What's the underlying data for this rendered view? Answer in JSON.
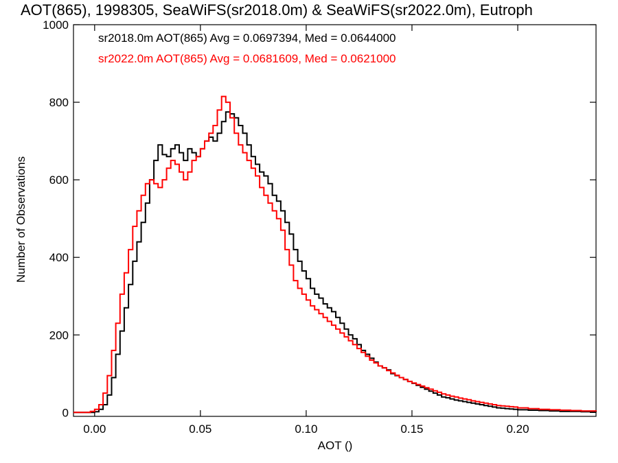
{
  "chart_data": {
    "type": "line",
    "title": "AOT(865), 1998305, SeaWiFS(sr2018.0m) & SeaWiFS(sr2022.0m), Eutroph",
    "xlabel": "AOT ()",
    "ylabel": "Number of Observations",
    "xlim": [
      -0.01,
      0.237
    ],
    "ylim": [
      -10,
      1000
    ],
    "x_ticks": [
      0.0,
      0.05,
      0.1,
      0.15,
      0.2
    ],
    "x_tick_labels": [
      "0.00",
      "0.05",
      "0.10",
      "0.15",
      "0.20"
    ],
    "y_ticks": [
      0,
      200,
      400,
      600,
      800,
      1000
    ],
    "y_tick_labels": [
      "0",
      "200",
      "400",
      "600",
      "800",
      "1000"
    ],
    "grid": false,
    "series": [
      {
        "name": "sr2018.0m",
        "color": "#000000",
        "annotation": "sr2018.0m AOT(865) Avg = 0.0697394, Med = 0.0644000",
        "points": [
          [
            -0.01,
            0
          ],
          [
            -0.002,
            0
          ],
          [
            0.0,
            2
          ],
          [
            0.002,
            8
          ],
          [
            0.004,
            20
          ],
          [
            0.006,
            45
          ],
          [
            0.008,
            90
          ],
          [
            0.01,
            150
          ],
          [
            0.012,
            210
          ],
          [
            0.014,
            270
          ],
          [
            0.016,
            330
          ],
          [
            0.018,
            390
          ],
          [
            0.02,
            440
          ],
          [
            0.022,
            490
          ],
          [
            0.024,
            540
          ],
          [
            0.026,
            600
          ],
          [
            0.028,
            650
          ],
          [
            0.03,
            690
          ],
          [
            0.032,
            665
          ],
          [
            0.034,
            660
          ],
          [
            0.036,
            680
          ],
          [
            0.038,
            690
          ],
          [
            0.04,
            670
          ],
          [
            0.042,
            650
          ],
          [
            0.044,
            680
          ],
          [
            0.046,
            670
          ],
          [
            0.048,
            660
          ],
          [
            0.05,
            680
          ],
          [
            0.052,
            700
          ],
          [
            0.054,
            710
          ],
          [
            0.056,
            700
          ],
          [
            0.058,
            720
          ],
          [
            0.06,
            750
          ],
          [
            0.062,
            775
          ],
          [
            0.064,
            770
          ],
          [
            0.066,
            760
          ],
          [
            0.068,
            740
          ],
          [
            0.07,
            720
          ],
          [
            0.072,
            690
          ],
          [
            0.074,
            660
          ],
          [
            0.076,
            640
          ],
          [
            0.078,
            620
          ],
          [
            0.08,
            610
          ],
          [
            0.082,
            590
          ],
          [
            0.084,
            560
          ],
          [
            0.086,
            545
          ],
          [
            0.088,
            520
          ],
          [
            0.09,
            490
          ],
          [
            0.092,
            460
          ],
          [
            0.094,
            420
          ],
          [
            0.096,
            390
          ],
          [
            0.098,
            365
          ],
          [
            0.1,
            345
          ],
          [
            0.102,
            320
          ],
          [
            0.104,
            305
          ],
          [
            0.106,
            295
          ],
          [
            0.108,
            280
          ],
          [
            0.11,
            270
          ],
          [
            0.112,
            260
          ],
          [
            0.114,
            245
          ],
          [
            0.116,
            230
          ],
          [
            0.118,
            215
          ],
          [
            0.12,
            200
          ],
          [
            0.122,
            190
          ],
          [
            0.124,
            175
          ],
          [
            0.126,
            160
          ],
          [
            0.128,
            150
          ],
          [
            0.13,
            140
          ],
          [
            0.132,
            130
          ],
          [
            0.134,
            120
          ],
          [
            0.136,
            115
          ],
          [
            0.138,
            110
          ],
          [
            0.14,
            100
          ],
          [
            0.142,
            95
          ],
          [
            0.144,
            90
          ],
          [
            0.146,
            85
          ],
          [
            0.148,
            80
          ],
          [
            0.15,
            75
          ],
          [
            0.152,
            70
          ],
          [
            0.154,
            65
          ],
          [
            0.156,
            60
          ],
          [
            0.158,
            55
          ],
          [
            0.16,
            50
          ],
          [
            0.162,
            45
          ],
          [
            0.164,
            40
          ],
          [
            0.166,
            38
          ],
          [
            0.168,
            35
          ],
          [
            0.17,
            32
          ],
          [
            0.172,
            30
          ],
          [
            0.174,
            28
          ],
          [
            0.176,
            26
          ],
          [
            0.178,
            24
          ],
          [
            0.18,
            22
          ],
          [
            0.182,
            20
          ],
          [
            0.184,
            18
          ],
          [
            0.186,
            16
          ],
          [
            0.188,
            14
          ],
          [
            0.19,
            12
          ],
          [
            0.192,
            11
          ],
          [
            0.194,
            10
          ],
          [
            0.196,
            9
          ],
          [
            0.198,
            8
          ],
          [
            0.2,
            7
          ],
          [
            0.205,
            6
          ],
          [
            0.21,
            5
          ],
          [
            0.215,
            4
          ],
          [
            0.22,
            3
          ],
          [
            0.225,
            3
          ],
          [
            0.23,
            2
          ],
          [
            0.237,
            1
          ]
        ]
      },
      {
        "name": "sr2022.0m",
        "color": "#ff0000",
        "annotation": "sr2022.0m AOT(865) Avg = 0.0681609, Med = 0.0621000",
        "points": [
          [
            -0.01,
            0
          ],
          [
            -0.004,
            0
          ],
          [
            -0.002,
            3
          ],
          [
            0.0,
            8
          ],
          [
            0.002,
            20
          ],
          [
            0.004,
            50
          ],
          [
            0.006,
            95
          ],
          [
            0.008,
            160
          ],
          [
            0.01,
            230
          ],
          [
            0.012,
            305
          ],
          [
            0.014,
            360
          ],
          [
            0.016,
            420
          ],
          [
            0.018,
            480
          ],
          [
            0.02,
            520
          ],
          [
            0.022,
            560
          ],
          [
            0.024,
            590
          ],
          [
            0.026,
            600
          ],
          [
            0.028,
            590
          ],
          [
            0.03,
            580
          ],
          [
            0.032,
            600
          ],
          [
            0.034,
            630
          ],
          [
            0.036,
            650
          ],
          [
            0.038,
            640
          ],
          [
            0.04,
            620
          ],
          [
            0.042,
            600
          ],
          [
            0.044,
            620
          ],
          [
            0.046,
            650
          ],
          [
            0.048,
            660
          ],
          [
            0.05,
            680
          ],
          [
            0.052,
            700
          ],
          [
            0.054,
            720
          ],
          [
            0.056,
            740
          ],
          [
            0.058,
            780
          ],
          [
            0.06,
            815
          ],
          [
            0.062,
            800
          ],
          [
            0.064,
            760
          ],
          [
            0.066,
            720
          ],
          [
            0.068,
            690
          ],
          [
            0.07,
            670
          ],
          [
            0.072,
            650
          ],
          [
            0.074,
            630
          ],
          [
            0.076,
            610
          ],
          [
            0.078,
            580
          ],
          [
            0.08,
            560
          ],
          [
            0.082,
            540
          ],
          [
            0.084,
            520
          ],
          [
            0.086,
            500
          ],
          [
            0.088,
            470
          ],
          [
            0.09,
            420
          ],
          [
            0.092,
            380
          ],
          [
            0.094,
            340
          ],
          [
            0.096,
            320
          ],
          [
            0.098,
            305
          ],
          [
            0.1,
            290
          ],
          [
            0.102,
            275
          ],
          [
            0.104,
            265
          ],
          [
            0.106,
            255
          ],
          [
            0.108,
            245
          ],
          [
            0.11,
            235
          ],
          [
            0.112,
            225
          ],
          [
            0.114,
            215
          ],
          [
            0.116,
            205
          ],
          [
            0.118,
            195
          ],
          [
            0.12,
            185
          ],
          [
            0.122,
            175
          ],
          [
            0.124,
            165
          ],
          [
            0.126,
            155
          ],
          [
            0.128,
            145
          ],
          [
            0.13,
            135
          ],
          [
            0.132,
            128
          ],
          [
            0.134,
            120
          ],
          [
            0.136,
            115
          ],
          [
            0.138,
            108
          ],
          [
            0.14,
            102
          ],
          [
            0.142,
            96
          ],
          [
            0.144,
            90
          ],
          [
            0.146,
            85
          ],
          [
            0.148,
            80
          ],
          [
            0.15,
            76
          ],
          [
            0.152,
            72
          ],
          [
            0.154,
            68
          ],
          [
            0.156,
            64
          ],
          [
            0.158,
            60
          ],
          [
            0.16,
            56
          ],
          [
            0.162,
            52
          ],
          [
            0.164,
            48
          ],
          [
            0.166,
            45
          ],
          [
            0.168,
            42
          ],
          [
            0.17,
            40
          ],
          [
            0.172,
            37
          ],
          [
            0.174,
            35
          ],
          [
            0.176,
            33
          ],
          [
            0.178,
            30
          ],
          [
            0.18,
            28
          ],
          [
            0.182,
            26
          ],
          [
            0.184,
            24
          ],
          [
            0.186,
            22
          ],
          [
            0.188,
            20
          ],
          [
            0.19,
            18
          ],
          [
            0.192,
            17
          ],
          [
            0.194,
            16
          ],
          [
            0.196,
            15
          ],
          [
            0.198,
            14
          ],
          [
            0.2,
            12
          ],
          [
            0.205,
            10
          ],
          [
            0.21,
            8
          ],
          [
            0.215,
            7
          ],
          [
            0.22,
            6
          ],
          [
            0.225,
            5
          ],
          [
            0.23,
            4
          ],
          [
            0.237,
            3
          ]
        ]
      }
    ]
  }
}
